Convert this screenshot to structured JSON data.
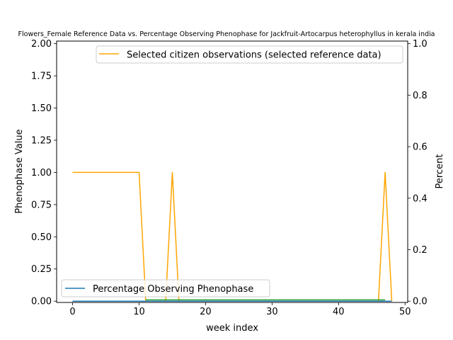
{
  "chart_data": {
    "type": "line",
    "title": "Flowers_Female Reference Data vs. Percentage Observing Phenophase for Jackfruit-Artocarpus heterophyllus in kerala india",
    "xlabel": "week index",
    "ylabel_left": "Phenophase Value",
    "ylabel_right": "Percent",
    "xlim": [
      -2.4,
      50.4
    ],
    "ylim_left": [
      -0.01,
      2.02
    ],
    "ylim_right": [
      -0.005,
      1.01
    ],
    "x_ticks": [
      0,
      10,
      20,
      30,
      40,
      50
    ],
    "x_tick_labels": [
      "0",
      "10",
      "20",
      "30",
      "40",
      "50"
    ],
    "y_left_ticks": [
      0.0,
      0.25,
      0.5,
      0.75,
      1.0,
      1.25,
      1.5,
      1.75,
      2.0
    ],
    "y_left_tick_labels": [
      "0.00",
      "0.25",
      "0.50",
      "0.75",
      "1.00",
      "1.25",
      "1.50",
      "1.75",
      "2.00"
    ],
    "y_right_ticks": [
      0.0,
      0.2,
      0.4,
      0.6,
      0.8,
      1.0
    ],
    "y_right_tick_labels": [
      "0.0",
      "0.2",
      "0.4",
      "0.6",
      "0.8",
      "1.0"
    ],
    "series": [
      {
        "name": "Selected citizen observations (selected reference data)",
        "axis": "left",
        "color": "#ffa500",
        "x": [
          0,
          1,
          2,
          3,
          4,
          5,
          6,
          7,
          8,
          9,
          10,
          11,
          12,
          13,
          14,
          15,
          16,
          17,
          18,
          19,
          20,
          21,
          22,
          23,
          24,
          25,
          26,
          27,
          28,
          29,
          30,
          31,
          32,
          33,
          34,
          35,
          36,
          37,
          38,
          39,
          40,
          41,
          42,
          43,
          44,
          45,
          46,
          47,
          48
        ],
        "values": [
          1,
          1,
          1,
          1,
          1,
          1,
          1,
          1,
          1,
          1,
          1,
          0,
          0,
          0,
          0,
          1,
          0,
          0,
          0,
          0,
          0,
          0,
          0,
          0,
          0,
          0,
          0,
          0,
          0,
          0,
          0,
          0,
          0,
          0,
          0,
          0,
          0,
          0,
          0,
          0,
          0,
          0,
          0,
          0,
          0,
          0,
          0,
          1,
          0
        ]
      },
      {
        "name": "Percentage Observing Phenophase",
        "axis": "right",
        "color": "#1f77b4",
        "x": [
          0,
          48
        ],
        "values": [
          0,
          0
        ]
      },
      {
        "name": "",
        "axis": "left",
        "color": "#2ca02c",
        "x": [
          11,
          47
        ],
        "values": [
          0.01,
          0.01
        ]
      }
    ],
    "legends": [
      {
        "placement": "upper right",
        "entries": [
          "Selected citizen observations (selected reference data)"
        ]
      },
      {
        "placement": "lower left",
        "entries": [
          "Percentage Observing Phenophase"
        ]
      }
    ],
    "grid": false
  }
}
